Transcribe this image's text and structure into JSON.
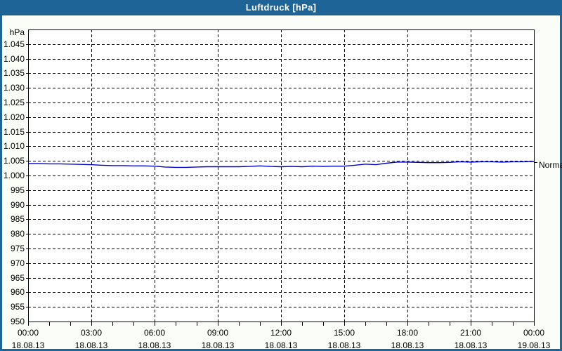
{
  "window": {
    "title": "Luftdruck [hPa]"
  },
  "colors": {
    "titlebar_bg": "#1e6496",
    "titlebar_text": "#ffffff",
    "window_border": "#1e6496",
    "page_bg": "#fbfdf8",
    "plot_bg": "#ffffff",
    "grid": "#000000",
    "axis_text": "#000000",
    "series_line": "#0000cd"
  },
  "chart_data": {
    "type": "line",
    "title": "Luftdruck [hPa]",
    "ylabel": "hPa",
    "grid": "dashed",
    "legend_position": "none",
    "y_axis": {
      "min": 950,
      "max": 1050,
      "grid_step": 5,
      "tick_label_max": 1045,
      "tick_labels": [
        "1.045",
        "1.040",
        "1.035",
        "1.030",
        "1.025",
        "1.020",
        "1.015",
        "1.010",
        "1.005",
        "1.000",
        "995",
        "990",
        "985",
        "980",
        "975",
        "970",
        "965",
        "960",
        "955",
        "950"
      ],
      "number_format": "german-thousands-dot"
    },
    "x_axis": {
      "start_hour": 0,
      "end_hour": 24,
      "major_step_hours": 3,
      "minor_step_hours": 1,
      "major_ticks": [
        {
          "time": "00:00",
          "date": "18.08.13"
        },
        {
          "time": "03:00",
          "date": "18.08.13"
        },
        {
          "time": "06:00",
          "date": "18.08.13"
        },
        {
          "time": "09:00",
          "date": "18.08.13"
        },
        {
          "time": "12:00",
          "date": "18.08.13"
        },
        {
          "time": "15:00",
          "date": "18.08.13"
        },
        {
          "time": "18:00",
          "date": "18.08.13"
        },
        {
          "time": "21:00",
          "date": "18.08.13"
        },
        {
          "time": "00:00",
          "date": "19.08.13"
        }
      ]
    },
    "series": [
      {
        "name": "Luftdruck",
        "color": "#0000cd",
        "start_hour": 0,
        "interval_hours": 0.5,
        "values": [
          1004.1,
          1004.1,
          1004.0,
          1004.0,
          1003.9,
          1003.8,
          1003.7,
          1003.5,
          1003.4,
          1003.4,
          1003.3,
          1003.3,
          1003.2,
          1002.9,
          1002.8,
          1002.8,
          1002.9,
          1003.0,
          1003.0,
          1003.0,
          1003.0,
          1003.1,
          1003.3,
          1003.1,
          1003.0,
          1003.1,
          1003.0,
          1003.2,
          1003.1,
          1003.2,
          1003.2,
          1003.5,
          1003.9,
          1003.7,
          1004.2,
          1004.6,
          1004.6,
          1004.5,
          1004.4,
          1004.4,
          1004.5,
          1004.7,
          1004.6,
          1004.7,
          1004.7,
          1004.6,
          1004.7,
          1004.7,
          1004.8
        ]
      }
    ],
    "annotations": [
      {
        "label": "Normal",
        "value": 1004.6,
        "position": "right-edge"
      }
    ]
  }
}
